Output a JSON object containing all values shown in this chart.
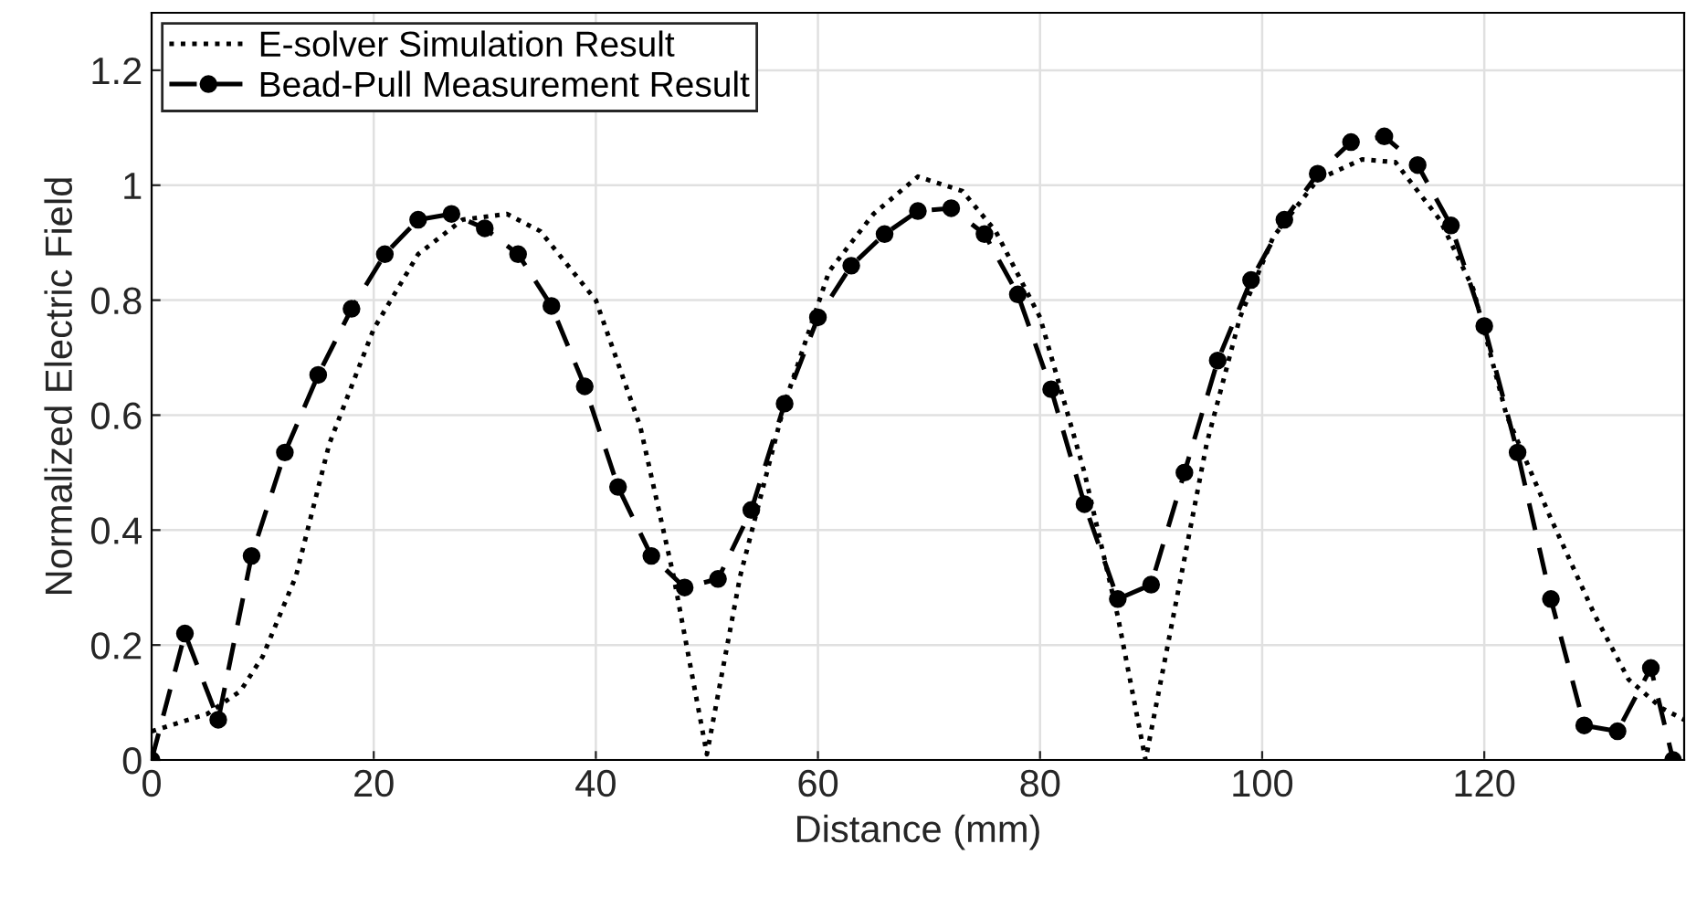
{
  "chart_data": {
    "type": "line",
    "xlabel": "Distance (mm)",
    "ylabel": "Normalized Electric Field",
    "xlim": [
      0,
      138
    ],
    "xticks": [
      0,
      20,
      40,
      60,
      80,
      100,
      120
    ],
    "ylim": [
      0,
      1.3
    ],
    "yticks": [
      0,
      0.2,
      0.4,
      0.6,
      0.8,
      1,
      1.2
    ],
    "grid": true,
    "legend": "top left",
    "series": [
      {
        "name": "E-solver Simulation Result",
        "color": "#000000",
        "line_style": "dotted",
        "marker": "none",
        "x": [
          0,
          5,
          8,
          10,
          13,
          16,
          20,
          24,
          28,
          32,
          35,
          40,
          44,
          47,
          50,
          53,
          57,
          61,
          65,
          69,
          73,
          76,
          80,
          84,
          87,
          89.5,
          92,
          95,
          98,
          101,
          105,
          109,
          112,
          116,
          119,
          122,
          126,
          130,
          133,
          136,
          138
        ],
        "values": [
          0.05,
          0.08,
          0.12,
          0.18,
          0.32,
          0.55,
          0.75,
          0.88,
          0.94,
          0.95,
          0.92,
          0.8,
          0.58,
          0.32,
          0.01,
          0.32,
          0.62,
          0.85,
          0.95,
          1.015,
          0.99,
          0.92,
          0.77,
          0.5,
          0.25,
          0.0,
          0.25,
          0.55,
          0.77,
          0.91,
          1.01,
          1.045,
          1.04,
          0.94,
          0.82,
          0.6,
          0.42,
          0.25,
          0.14,
          0.09,
          0.07
        ]
      },
      {
        "name": "Bead-Pull Measurement Result",
        "color": "#000000",
        "line_style": "dashed",
        "marker": "circle",
        "x": [
          0,
          3,
          6,
          9,
          12,
          15,
          18,
          21,
          24,
          27,
          30,
          33,
          36,
          39,
          42,
          45,
          48,
          51,
          54,
          57,
          60,
          63,
          66,
          69,
          72,
          75,
          78,
          81,
          84,
          87,
          90,
          93,
          96,
          99,
          102,
          105,
          108,
          111,
          114,
          117,
          120,
          123,
          126,
          129,
          132,
          135,
          137
        ],
        "values": [
          0,
          0.22,
          0.07,
          0.355,
          0.535,
          0.67,
          0.785,
          0.88,
          0.94,
          0.95,
          0.925,
          0.88,
          0.79,
          0.65,
          0.475,
          0.355,
          0.3,
          0.315,
          0.435,
          0.62,
          0.77,
          0.86,
          0.915,
          0.955,
          0.96,
          0.915,
          0.81,
          0.645,
          0.445,
          0.28,
          0.305,
          0.5,
          0.695,
          0.835,
          0.94,
          1.02,
          1.075,
          1.085,
          1.035,
          0.93,
          0.755,
          0.535,
          0.28,
          0.06,
          0.05,
          0.16,
          0.0
        ]
      }
    ]
  }
}
